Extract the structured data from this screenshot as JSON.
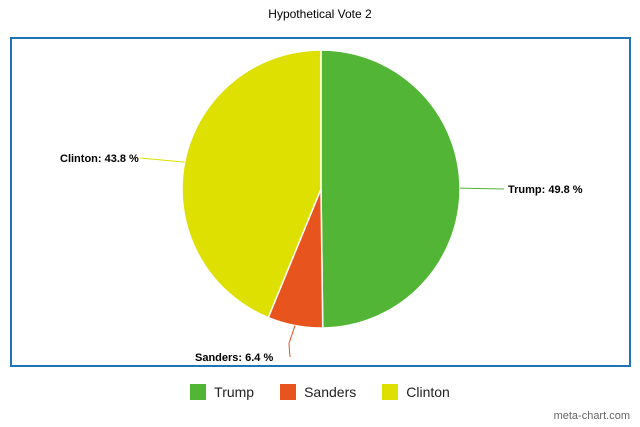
{
  "chart_data": {
    "type": "pie",
    "title": "Hypothetical Vote 2",
    "slices": [
      {
        "name": "Trump",
        "value": 49.8,
        "label": "Trump: 49.8 %",
        "color": "#52b535"
      },
      {
        "name": "Sanders",
        "value": 6.4,
        "label": "Sanders: 6.4 %",
        "color": "#e8541d"
      },
      {
        "name": "Clinton",
        "value": 43.8,
        "label": "Clinton: 43.8 %",
        "color": "#dde000"
      }
    ],
    "legend_position": "bottom"
  },
  "watermark": "meta-chart.com"
}
